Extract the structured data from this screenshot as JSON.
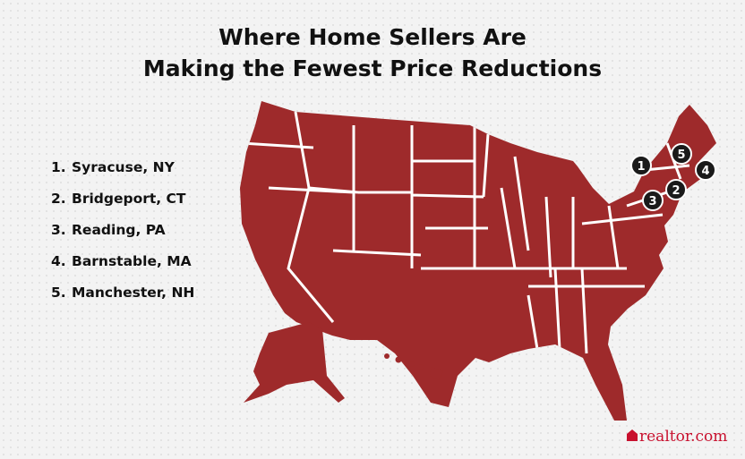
{
  "header": {
    "title_lines": [
      "Where Home Sellers Are",
      "Making the Fewest Price Reductions"
    ]
  },
  "list": [
    {
      "rank": "1.",
      "city": "Syracuse, NY"
    },
    {
      "rank": "2.",
      "city": "Bridgeport, CT"
    },
    {
      "rank": "3.",
      "city": "Reading, PA"
    },
    {
      "rank": "4.",
      "city": "Barnstable, MA"
    },
    {
      "rank": "5.",
      "city": "Manchester, NH"
    }
  ],
  "markers": [
    "1",
    "5",
    "4",
    "2",
    "3"
  ],
  "logo": "realtor.com"
}
